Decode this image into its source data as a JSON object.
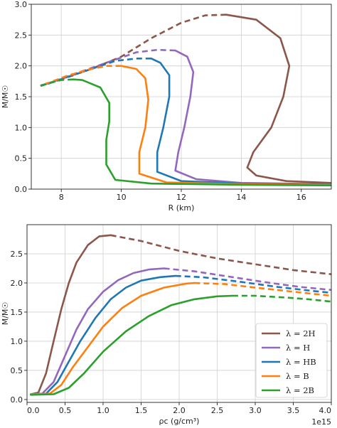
{
  "chart_data": [
    {
      "type": "line",
      "xlabel": "R (km)",
      "ylabel": "M/M☉",
      "xlim": [
        7.0,
        17.0
      ],
      "ylim": [
        0.0,
        3.0
      ],
      "xticks": [
        8,
        10,
        12,
        14,
        16
      ],
      "xtick_labels": [
        "8",
        "10",
        "12",
        "14",
        "16"
      ],
      "yticks": [
        0.0,
        0.5,
        1.0,
        1.5,
        2.0,
        2.5,
        3.0
      ],
      "ytick_labels": [
        "0.0",
        "0.5",
        "1.0",
        "1.5",
        "2.0",
        "2.5",
        "3.0"
      ],
      "grid": true,
      "series": [
        {
          "name": "λ = 2H",
          "color": "#8c564b",
          "solid": [
            [
              17.0,
              0.1
            ],
            [
              15.5,
              0.13
            ],
            [
              14.5,
              0.22
            ],
            [
              14.2,
              0.35
            ],
            [
              14.4,
              0.6
            ],
            [
              15.0,
              1.0
            ],
            [
              15.4,
              1.5
            ],
            [
              15.6,
              2.0
            ],
            [
              15.3,
              2.45
            ],
            [
              14.5,
              2.75
            ],
            [
              13.5,
              2.83
            ]
          ],
          "dashed": [
            [
              13.5,
              2.83
            ],
            [
              12.8,
              2.82
            ],
            [
              12.0,
              2.7
            ],
            [
              11.0,
              2.45
            ],
            [
              10.0,
              2.15
            ],
            [
              9.0,
              1.95
            ],
            [
              8.0,
              1.78
            ],
            [
              7.3,
              1.68
            ]
          ]
        },
        {
          "name": "λ = H",
          "color": "#9467bd",
          "solid": [
            [
              17.0,
              0.08
            ],
            [
              14.0,
              0.1
            ],
            [
              12.5,
              0.16
            ],
            [
              11.8,
              0.3
            ],
            [
              11.9,
              0.6
            ],
            [
              12.1,
              1.0
            ],
            [
              12.3,
              1.5
            ],
            [
              12.4,
              1.9
            ],
            [
              12.2,
              2.15
            ],
            [
              11.8,
              2.25
            ]
          ],
          "dashed": [
            [
              11.8,
              2.25
            ],
            [
              11.2,
              2.26
            ],
            [
              10.5,
              2.22
            ],
            [
              9.5,
              2.05
            ],
            [
              8.5,
              1.88
            ],
            [
              7.6,
              1.72
            ],
            [
              7.3,
              1.68
            ]
          ]
        },
        {
          "name": "λ = HB",
          "color": "#1f77b4",
          "solid": [
            [
              17.0,
              0.08
            ],
            [
              14.0,
              0.09
            ],
            [
              12.0,
              0.13
            ],
            [
              11.2,
              0.28
            ],
            [
              11.2,
              0.6
            ],
            [
              11.4,
              1.0
            ],
            [
              11.6,
              1.5
            ],
            [
              11.6,
              1.85
            ],
            [
              11.3,
              2.05
            ],
            [
              11.0,
              2.12
            ]
          ],
          "dashed": [
            [
              11.0,
              2.12
            ],
            [
              10.5,
              2.12
            ],
            [
              9.8,
              2.08
            ],
            [
              9.0,
              1.95
            ],
            [
              8.2,
              1.82
            ],
            [
              7.5,
              1.7
            ],
            [
              7.3,
              1.68
            ]
          ]
        },
        {
          "name": "λ = B",
          "color": "#ff7f0e",
          "solid": [
            [
              17.0,
              0.07
            ],
            [
              14.0,
              0.08
            ],
            [
              11.5,
              0.11
            ],
            [
              10.6,
              0.25
            ],
            [
              10.6,
              0.6
            ],
            [
              10.8,
              1.0
            ],
            [
              10.9,
              1.45
            ],
            [
              10.8,
              1.8
            ],
            [
              10.5,
              1.95
            ],
            [
              10.0,
              2.0
            ]
          ],
          "dashed": [
            [
              10.0,
              2.0
            ],
            [
              9.5,
              2.0
            ],
            [
              8.9,
              1.94
            ],
            [
              8.2,
              1.84
            ],
            [
              7.6,
              1.73
            ],
            [
              7.3,
              1.68
            ]
          ]
        },
        {
          "name": "λ = 2B",
          "color": "#2ca02c",
          "solid": [
            [
              17.0,
              0.06
            ],
            [
              14.0,
              0.07
            ],
            [
              11.0,
              0.09
            ],
            [
              9.8,
              0.15
            ],
            [
              9.5,
              0.4
            ],
            [
              9.5,
              0.8
            ],
            [
              9.6,
              1.1
            ],
            [
              9.6,
              1.4
            ],
            [
              9.3,
              1.65
            ],
            [
              8.7,
              1.77
            ],
            [
              8.4,
              1.78
            ]
          ],
          "dashed": [
            [
              8.4,
              1.78
            ],
            [
              8.0,
              1.77
            ],
            [
              7.6,
              1.72
            ],
            [
              7.3,
              1.67
            ]
          ]
        }
      ]
    },
    {
      "type": "line",
      "xlabel": "ρc (g/cm³)",
      "x_exponent_label": "1e15",
      "ylabel": "M/M☉",
      "xlim": [
        0.0,
        4.0
      ],
      "ylim": [
        -0.05,
        3.0
      ],
      "xticks": [
        0.0,
        0.5,
        1.0,
        1.5,
        2.0,
        2.5,
        3.0,
        3.5,
        4.0
      ],
      "xtick_labels": [
        "0.0",
        "0.5",
        "1.0",
        "1.5",
        "2.0",
        "2.5",
        "3.0",
        "3.5",
        "4.0"
      ],
      "yticks": [
        0.0,
        0.5,
        1.0,
        1.5,
        2.0,
        2.5
      ],
      "ytick_labels": [
        "0.0",
        "0.5",
        "1.0",
        "1.5",
        "2.0",
        "2.5"
      ],
      "grid": true,
      "legend": {
        "position": "lower-right",
        "entries": [
          "λ = 2H",
          "λ = H",
          "λ = HB",
          "λ = B",
          "λ = 2B"
        ]
      },
      "series": [
        {
          "name": "λ = 2H",
          "color": "#8c564b",
          "solid": [
            [
              0.05,
              0.09
            ],
            [
              0.15,
              0.12
            ],
            [
              0.25,
              0.45
            ],
            [
              0.35,
              1.0
            ],
            [
              0.45,
              1.55
            ],
            [
              0.55,
              2.0
            ],
            [
              0.65,
              2.35
            ],
            [
              0.8,
              2.65
            ],
            [
              0.95,
              2.8
            ],
            [
              1.1,
              2.82
            ]
          ],
          "dashed": [
            [
              1.1,
              2.82
            ],
            [
              1.5,
              2.72
            ],
            [
              2.0,
              2.55
            ],
            [
              2.5,
              2.42
            ],
            [
              3.0,
              2.32
            ],
            [
              3.5,
              2.22
            ],
            [
              4.0,
              2.15
            ]
          ]
        },
        {
          "name": "λ = H",
          "color": "#9467bd",
          "solid": [
            [
              0.05,
              0.09
            ],
            [
              0.2,
              0.1
            ],
            [
              0.35,
              0.3
            ],
            [
              0.5,
              0.75
            ],
            [
              0.65,
              1.2
            ],
            [
              0.8,
              1.55
            ],
            [
              1.0,
              1.85
            ],
            [
              1.2,
              2.05
            ],
            [
              1.4,
              2.17
            ],
            [
              1.6,
              2.23
            ],
            [
              1.8,
              2.25
            ]
          ],
          "dashed": [
            [
              1.8,
              2.25
            ],
            [
              2.2,
              2.2
            ],
            [
              2.7,
              2.1
            ],
            [
              3.2,
              2.0
            ],
            [
              3.6,
              1.93
            ],
            [
              4.0,
              1.88
            ]
          ]
        },
        {
          "name": "λ = HB",
          "color": "#1f77b4",
          "solid": [
            [
              0.05,
              0.09
            ],
            [
              0.25,
              0.1
            ],
            [
              0.4,
              0.3
            ],
            [
              0.55,
              0.65
            ],
            [
              0.7,
              1.0
            ],
            [
              0.9,
              1.4
            ],
            [
              1.1,
              1.72
            ],
            [
              1.3,
              1.92
            ],
            [
              1.5,
              2.04
            ],
            [
              1.75,
              2.1
            ],
            [
              1.95,
              2.12
            ]
          ],
          "dashed": [
            [
              1.95,
              2.12
            ],
            [
              2.3,
              2.1
            ],
            [
              2.8,
              2.02
            ],
            [
              3.3,
              1.93
            ],
            [
              3.7,
              1.87
            ],
            [
              4.0,
              1.83
            ]
          ]
        },
        {
          "name": "λ = B",
          "color": "#ff7f0e",
          "solid": [
            [
              0.05,
              0.09
            ],
            [
              0.3,
              0.1
            ],
            [
              0.45,
              0.25
            ],
            [
              0.6,
              0.55
            ],
            [
              0.8,
              0.9
            ],
            [
              1.0,
              1.25
            ],
            [
              1.25,
              1.57
            ],
            [
              1.5,
              1.78
            ],
            [
              1.8,
              1.92
            ],
            [
              2.1,
              1.99
            ],
            [
              2.2,
              2.0
            ]
          ],
          "dashed": [
            [
              2.2,
              2.0
            ],
            [
              2.6,
              1.98
            ],
            [
              3.0,
              1.92
            ],
            [
              3.5,
              1.85
            ],
            [
              4.0,
              1.78
            ]
          ]
        },
        {
          "name": "λ = 2B",
          "color": "#2ca02c",
          "solid": [
            [
              0.05,
              0.08
            ],
            [
              0.35,
              0.09
            ],
            [
              0.55,
              0.2
            ],
            [
              0.75,
              0.45
            ],
            [
              1.0,
              0.82
            ],
            [
              1.3,
              1.17
            ],
            [
              1.6,
              1.43
            ],
            [
              1.9,
              1.62
            ],
            [
              2.2,
              1.72
            ],
            [
              2.5,
              1.77
            ],
            [
              2.7,
              1.78
            ]
          ],
          "dashed": [
            [
              2.7,
              1.78
            ],
            [
              3.0,
              1.78
            ],
            [
              3.4,
              1.75
            ],
            [
              3.7,
              1.72
            ],
            [
              4.0,
              1.68
            ]
          ]
        }
      ]
    }
  ]
}
